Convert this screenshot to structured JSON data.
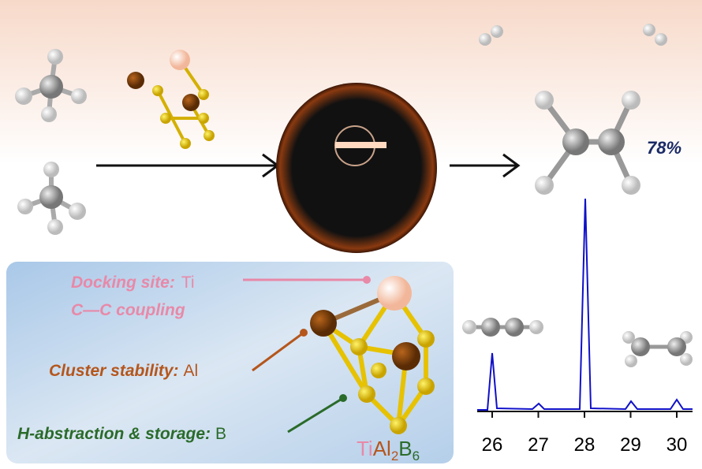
{
  "yield": "78%",
  "roles": {
    "docking_label": "Docking site:",
    "docking_element": "Ti",
    "coupling": "C—C coupling",
    "stability_label": "Cluster stability:",
    "stability_element": "Al",
    "abstraction_label": "H-abstraction & storage:",
    "abstraction_element": "B"
  },
  "formula": {
    "ti": "Ti",
    "al": "Al",
    "al_count": "2",
    "b": "B",
    "b_count": "6"
  },
  "spectrum": {
    "xticks": [
      "26",
      "27",
      "28",
      "29",
      "30"
    ]
  }
}
